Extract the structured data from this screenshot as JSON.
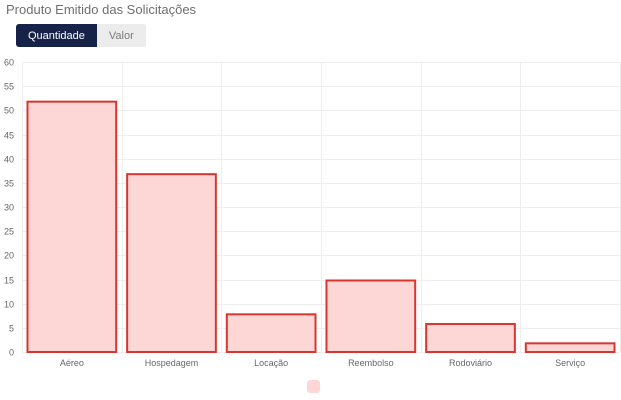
{
  "header": {
    "title": "Produto Emitido das Solicitações"
  },
  "toggle": {
    "options": [
      "Quantidade",
      "Valor"
    ],
    "selected": "Quantidade"
  },
  "colors": {
    "bar_fill": "#fdd6d6",
    "bar_stroke": "#d8362f",
    "grid": "#eeeeee",
    "toggle_active_bg": "#172248"
  },
  "chart_data": {
    "type": "bar",
    "categories": [
      "Aéreo",
      "Hospedagem",
      "Locação",
      "Reembolso",
      "Rodoviário",
      "Serviço"
    ],
    "values": [
      52,
      37,
      8,
      15,
      6,
      2
    ],
    "ylim": [
      0,
      60
    ],
    "yticks": [
      0,
      5,
      10,
      15,
      20,
      25,
      30,
      35,
      40,
      45,
      50,
      55,
      60
    ],
    "grid": true,
    "legend": {
      "placement": "bottom",
      "entries": [
        ""
      ]
    }
  }
}
